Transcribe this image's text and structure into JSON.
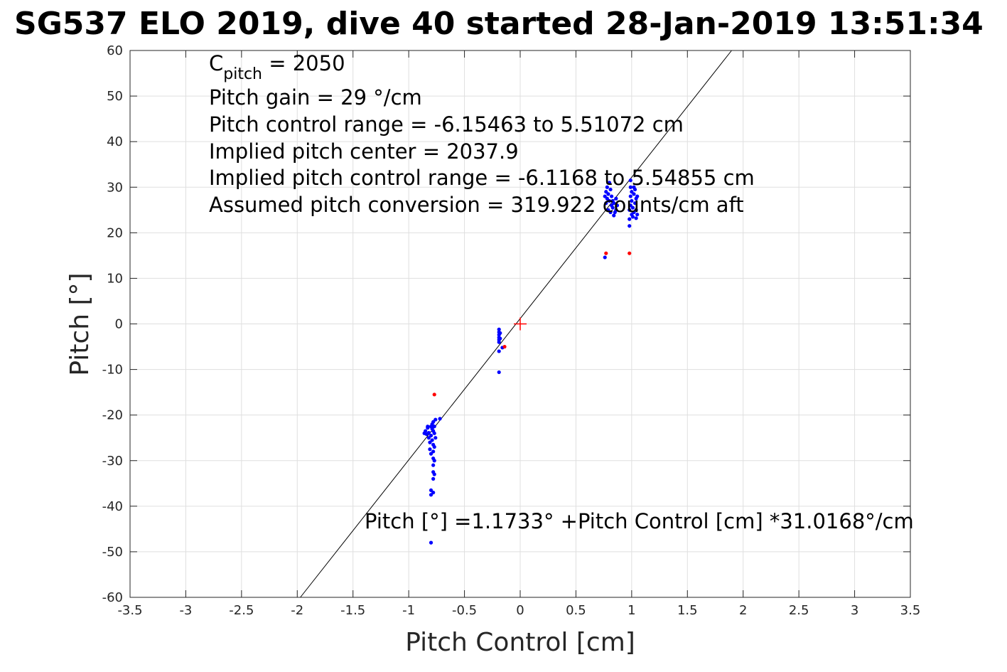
{
  "chart_data": {
    "type": "scatter",
    "title": "SG537 ELO 2019, dive 40 started 28-Jan-2019 13:51:34",
    "xlabel": "Pitch Control [cm]",
    "ylabel": "Pitch [°]",
    "xlim": [
      -3.5,
      3.5
    ],
    "ylim": [
      -60,
      60
    ],
    "xticks": [
      -3.5,
      -3,
      -2.5,
      -2,
      -1.5,
      -1,
      -0.5,
      0,
      0.5,
      1,
      1.5,
      2,
      2.5,
      3,
      3.5
    ],
    "yticks": [
      -60,
      -50,
      -40,
      -30,
      -20,
      -10,
      0,
      10,
      20,
      30,
      40,
      50,
      60
    ],
    "xtick_labels": [
      "-3.5",
      "-3",
      "-2.5",
      "-2",
      "-1.5",
      "-1",
      "-0.5",
      "0",
      "0.5",
      "1",
      "1.5",
      "2",
      "2.5",
      "3",
      "3.5"
    ],
    "ytick_labels": [
      "-60",
      "-50",
      "-40",
      "-30",
      "-20",
      "-10",
      "0",
      "10",
      "20",
      "30",
      "40",
      "50",
      "60"
    ],
    "grid": true,
    "annotations": {
      "c_pitch_main": "C",
      "c_pitch_sub": "pitch",
      "c_pitch_value": " = 2050",
      "lines": [
        "Pitch gain = 29 °/cm",
        "Pitch control range = -6.15463 to 5.51072 cm",
        "Implied pitch center = 2037.9",
        "Implied pitch control range = -6.1168 to 5.54855 cm",
        "Assumed pitch conversion = 319.922 counts/cm aft"
      ],
      "fit_equation": "Pitch [°] =1.1733° +Pitch Control [cm] *31.0168°/cm"
    },
    "fit_line": {
      "intercept": 1.1733,
      "slope": 31.0168,
      "color": "#000000"
    },
    "center_marker": {
      "x": 0,
      "y": 0,
      "color": "#ff0000",
      "shape": "plus"
    },
    "series": [
      {
        "color": "#0000ff",
        "points": [
          [
            -0.85,
            -23.5
          ],
          [
            -0.84,
            -24.2
          ],
          [
            -0.83,
            -22.8
          ],
          [
            -0.82,
            -23.9
          ],
          [
            -0.82,
            -25.0
          ],
          [
            -0.81,
            -26.0
          ],
          [
            -0.81,
            -27.5
          ],
          [
            -0.8,
            -24.5
          ],
          [
            -0.8,
            -22.5
          ],
          [
            -0.8,
            -28.5
          ],
          [
            -0.79,
            -22.0
          ],
          [
            -0.79,
            -23.0
          ],
          [
            -0.79,
            -25.5
          ],
          [
            -0.78,
            -21.5
          ],
          [
            -0.78,
            -23.5
          ],
          [
            -0.78,
            -26.5
          ],
          [
            -0.78,
            -28.0
          ],
          [
            -0.78,
            -29.5
          ],
          [
            -0.78,
            -31.0
          ],
          [
            -0.78,
            -32.5
          ],
          [
            -0.78,
            -34.0
          ],
          [
            -0.77,
            -22.5
          ],
          [
            -0.77,
            -24.0
          ],
          [
            -0.77,
            -27.0
          ],
          [
            -0.77,
            -30.0
          ],
          [
            -0.77,
            -33.0
          ],
          [
            -0.76,
            -21.0
          ],
          [
            -0.76,
            -25.0
          ],
          [
            -0.8,
            -36.5
          ],
          [
            -0.78,
            -37.0
          ],
          [
            -0.8,
            -37.5
          ],
          [
            -0.8,
            -48.0
          ],
          [
            -0.72,
            -20.8
          ],
          [
            -0.83,
            -22.5
          ],
          [
            -0.86,
            -24.0
          ],
          [
            -0.19,
            -1.2
          ],
          [
            -0.19,
            -1.8
          ],
          [
            -0.19,
            -2.4
          ],
          [
            -0.19,
            -3.0
          ],
          [
            -0.19,
            -3.5
          ],
          [
            -0.19,
            -4.0
          ],
          [
            -0.18,
            -2.0
          ],
          [
            -0.18,
            -3.2
          ],
          [
            -0.19,
            -6.0
          ],
          [
            -0.19,
            -10.6
          ],
          [
            -0.16,
            -5.2
          ],
          [
            0.76,
            14.6
          ],
          [
            0.76,
            28.0
          ],
          [
            0.77,
            26.5
          ],
          [
            0.77,
            29.0
          ],
          [
            0.78,
            27.5
          ],
          [
            0.78,
            30.0
          ],
          [
            0.79,
            25.0
          ],
          [
            0.79,
            28.5
          ],
          [
            0.8,
            31.0
          ],
          [
            0.8,
            27.0
          ],
          [
            0.81,
            29.5
          ],
          [
            0.81,
            24.5
          ],
          [
            0.82,
            26.0
          ],
          [
            0.82,
            28.0
          ],
          [
            0.83,
            25.5
          ],
          [
            0.83,
            27.0
          ],
          [
            0.84,
            23.8
          ],
          [
            0.84,
            26.5
          ],
          [
            0.85,
            24.5
          ],
          [
            0.86,
            25.0
          ],
          [
            0.86,
            27.5
          ],
          [
            0.87,
            26.0
          ],
          [
            0.98,
            21.5
          ],
          [
            0.98,
            23.0
          ],
          [
            0.98,
            25.0
          ],
          [
            0.99,
            26.0
          ],
          [
            0.99,
            28.0
          ],
          [
            0.99,
            30.0
          ],
          [
            0.99,
            31.5
          ],
          [
            1.0,
            24.0
          ],
          [
            1.0,
            27.0
          ],
          [
            1.0,
            29.0
          ],
          [
            1.01,
            23.5
          ],
          [
            1.01,
            25.5
          ],
          [
            1.02,
            28.5
          ],
          [
            1.02,
            24.5
          ],
          [
            1.03,
            26.5
          ],
          [
            1.03,
            29.5
          ],
          [
            1.04,
            23.2
          ],
          [
            1.04,
            25.0
          ],
          [
            1.04,
            27.5
          ],
          [
            1.05,
            24.0
          ],
          [
            1.05,
            28.0
          ],
          [
            1.02,
            30.0
          ]
        ]
      },
      {
        "color": "#ff0000",
        "points": [
          [
            -0.77,
            -15.5
          ],
          [
            -0.14,
            -5.0
          ],
          [
            0.77,
            15.5
          ],
          [
            0.98,
            15.5
          ]
        ]
      }
    ]
  }
}
